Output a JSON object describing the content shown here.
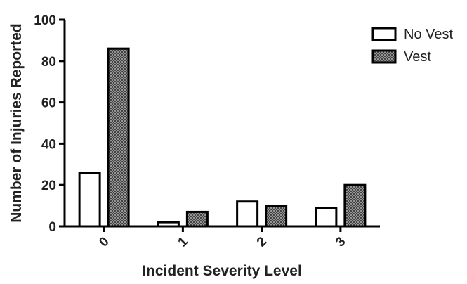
{
  "chart_data": {
    "type": "bar",
    "title": "",
    "xlabel": "Incident Severity Level",
    "ylabel": "Number of Injuries Reported",
    "categories": [
      "0",
      "1",
      "2",
      "3"
    ],
    "series": [
      {
        "name": "No Vest",
        "values": [
          26,
          2,
          12,
          9
        ],
        "fill": "#ffffff",
        "pattern": "none"
      },
      {
        "name": "Vest",
        "values": [
          86,
          7,
          10,
          20
        ],
        "fill": "#8a8a8a",
        "pattern": "crosshatch"
      }
    ],
    "ylim": [
      0,
      100
    ],
    "yticks": [
      0,
      20,
      40,
      60,
      80,
      100
    ],
    "grid": false,
    "legend_position": "top-right",
    "colors": {
      "axis": "#000000",
      "bar_edge": "#000000",
      "text": "#222222"
    }
  }
}
